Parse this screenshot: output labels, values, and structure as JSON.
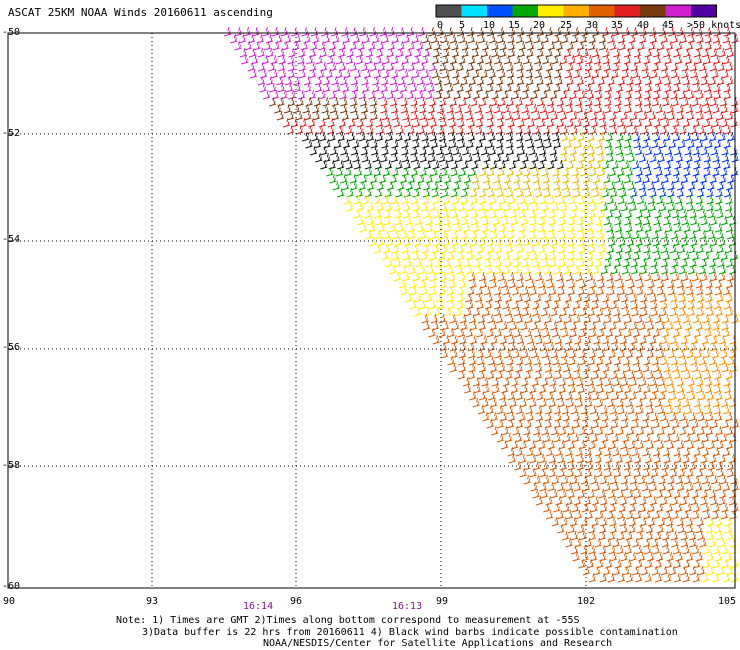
{
  "title": "ASCAT 25KM NOAA Winds 20160611 ascending",
  "legend": {
    "labels": [
      "0",
      "5",
      "10",
      "15",
      "20",
      "25",
      "30",
      "35",
      "40",
      "45",
      ">50 knots"
    ],
    "colors": [
      "#505050",
      "#00e0ff",
      "#0050ff",
      "#00a800",
      "#ffee00",
      "#ffb000",
      "#e06000",
      "#e02020",
      "#7a3a10",
      "#d020d0",
      "#5000a0"
    ]
  },
  "axes": {
    "lat_labels": [
      "-50",
      "-52",
      "-54",
      "-56",
      "-58",
      "-60"
    ],
    "lon_labels": [
      "90",
      "93",
      "96",
      "99",
      "102",
      "105"
    ]
  },
  "times": [
    "16:14",
    "16:13"
  ],
  "notes": [
    "Note: 1) Times are GMT 2)Times along bottom correspond to measurement at -55S",
    "3)Data buffer is 22 hrs from 20160611 4) Black wind barbs indicate possible contamination",
    "NOAA/NESDIS/Center for Satellite Applications and Research"
  ]
}
